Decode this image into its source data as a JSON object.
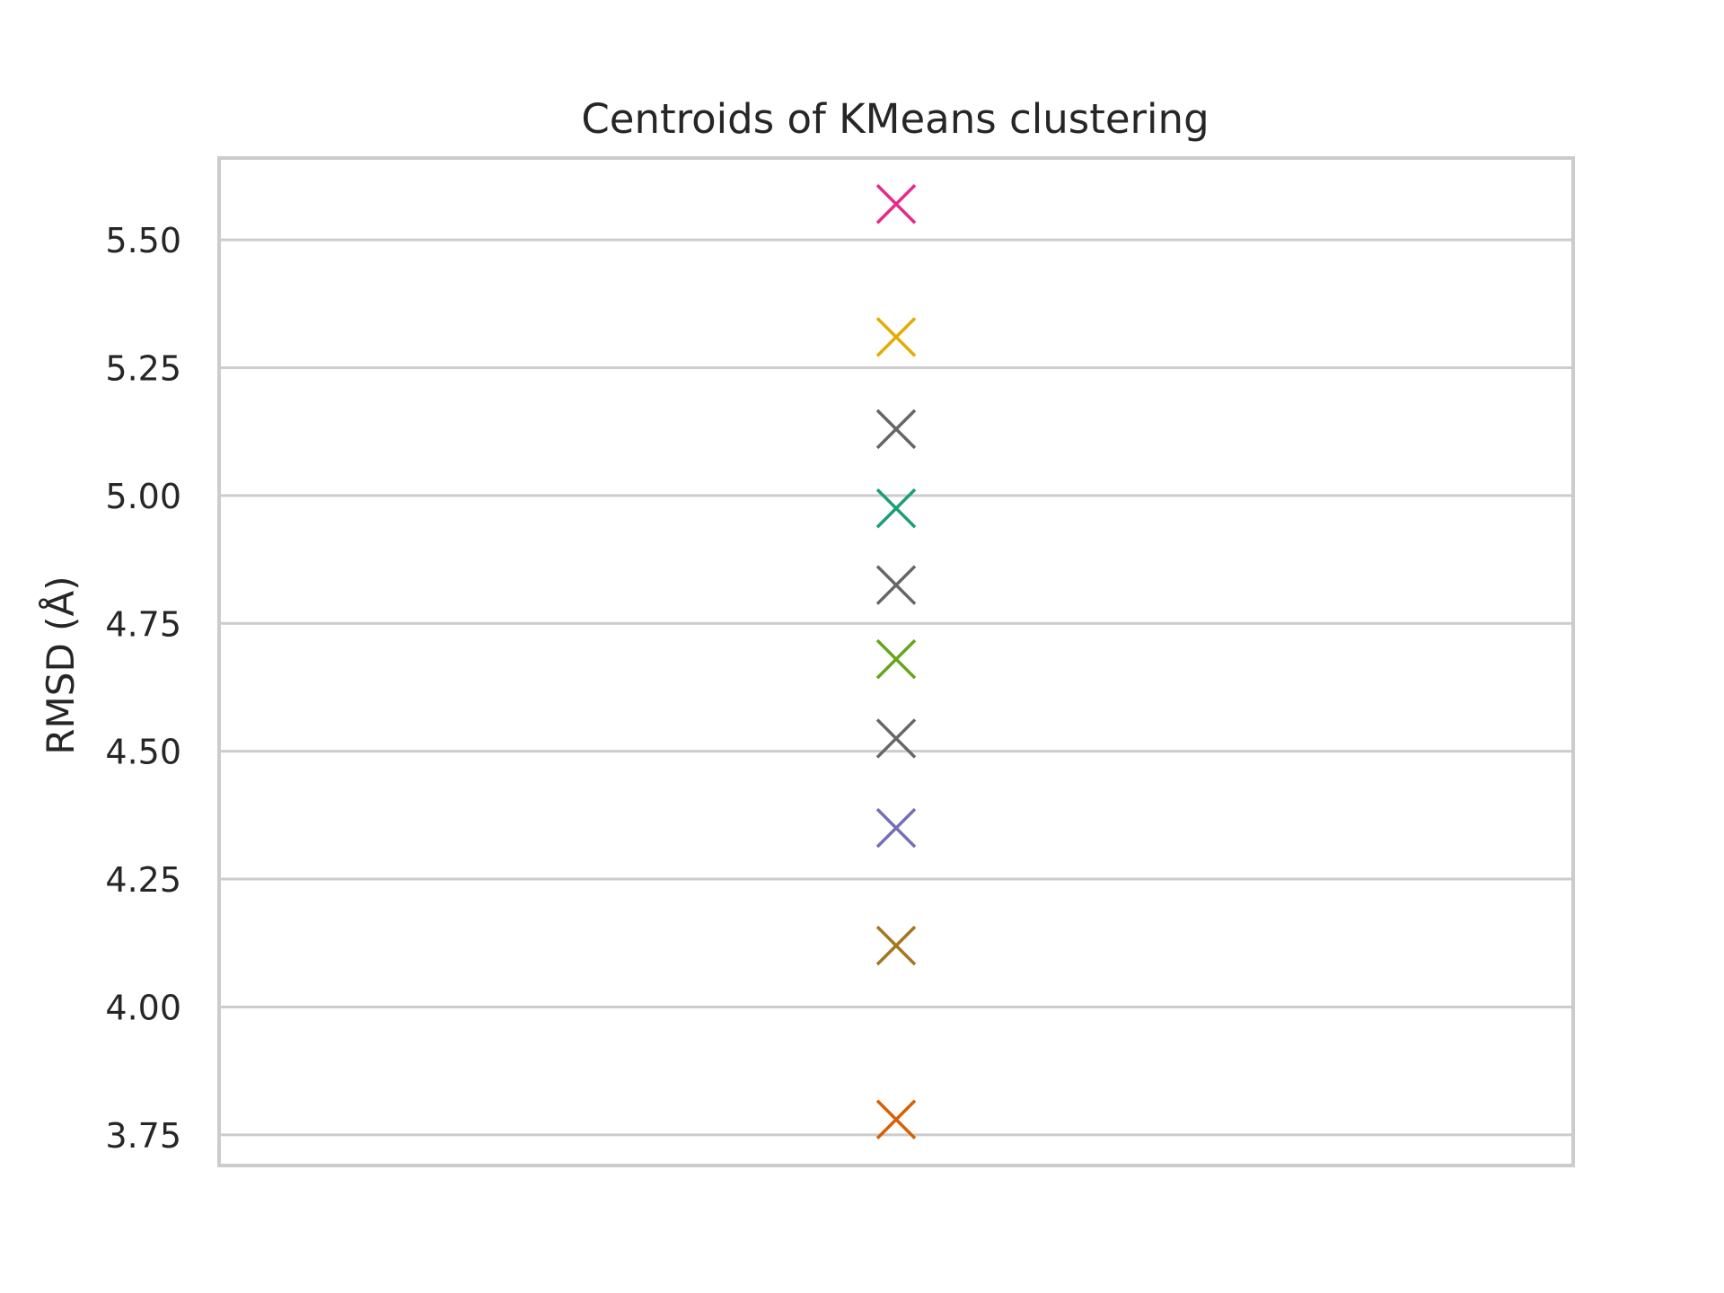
{
  "chart_data": {
    "type": "scatter",
    "title": "Centroids of KMeans clustering",
    "xlabel": "",
    "ylabel": "RMSD (Å)",
    "ylim": [
      3.69,
      5.66
    ],
    "yticks": [
      3.75,
      4.0,
      4.25,
      4.5,
      4.75,
      5.0,
      5.25,
      5.5
    ],
    "ytick_labels": [
      "3.75",
      "4.00",
      "4.25",
      "4.50",
      "4.75",
      "5.00",
      "5.25",
      "5.50"
    ],
    "grid": true,
    "marker": "x",
    "points": [
      {
        "y": 5.57,
        "color": "#e7298a"
      },
      {
        "y": 5.31,
        "color": "#e6ab02"
      },
      {
        "y": 5.13,
        "color": "#666666"
      },
      {
        "y": 4.975,
        "color": "#1b9e77"
      },
      {
        "y": 4.825,
        "color": "#666666"
      },
      {
        "y": 4.68,
        "color": "#66a61e"
      },
      {
        "y": 4.525,
        "color": "#666666"
      },
      {
        "y": 4.35,
        "color": "#7570b3"
      },
      {
        "y": 4.12,
        "color": "#a6761d"
      },
      {
        "y": 3.78,
        "color": "#d95f02"
      }
    ]
  }
}
